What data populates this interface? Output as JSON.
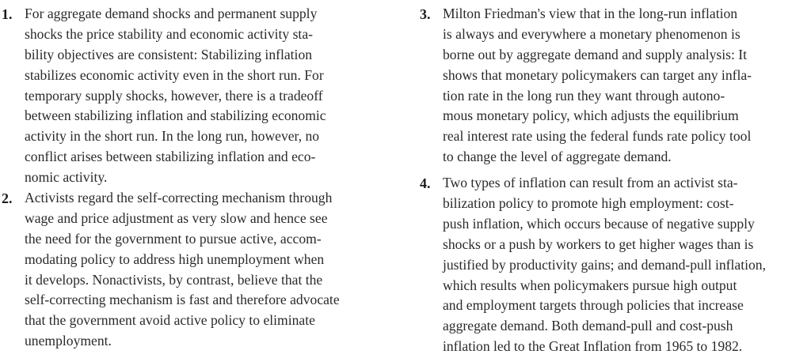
{
  "left_column": {
    "items": [
      {
        "number": "1.",
        "lines": [
          "For aggregate demand shocks and permanent supply",
          "shocks the price stability and economic activity sta-",
          "bility objectives are consistent: Stabilizing inflation",
          "stabilizes economic activity even in the short run. For",
          "temporary supply shocks, however, there is a tradeoff",
          "between stabilizing inflation and stabilizing economic",
          "activity in the short run. In the long run, however, no",
          "conflict arises between stabilizing inflation and eco-",
          "nomic activity."
        ]
      },
      {
        "number": "2.",
        "lines": [
          "Activists regard the self-correcting mechanism through",
          "wage and price adjustment as very slow and hence see",
          "the need for the government to pursue active, accom-",
          "modating policy to address high unemployment when",
          "it develops. Nonactivists, by contrast, believe that the",
          "self-correcting mechanism is fast and therefore advocate",
          "that the government avoid active policy to eliminate",
          "unemployment."
        ]
      }
    ]
  },
  "right_column": {
    "items": [
      {
        "number": "3.",
        "lines": [
          "Milton Friedman's view that in the long-run inflation",
          "is always and everywhere a monetary phenomenon is",
          "borne out by aggregate demand and supply analysis: It",
          "shows that monetary policymakers can target any infla-",
          "tion rate in the long run they want through autono-",
          "mous monetary policy, which adjusts the equilibrium",
          "real interest rate using the federal funds rate policy tool",
          "to change the level of aggregate demand."
        ]
      },
      {
        "number": "4.",
        "lines": [
          "Two types of inflation can result from an activist sta-",
          "bilization policy to promote high employment: cost-",
          "push inflation, which occurs because of negative supply",
          "shocks or a push by workers to get higher wages than is",
          "justified by productivity gains; and demand-pull inflation,",
          "which results when policymakers pursue high output",
          "and employment targets through policies that increase",
          "aggregate demand. Both demand-pull and cost-push",
          "inflation led to the Great Inflation from 1965 to 1982."
        ]
      }
    ]
  }
}
